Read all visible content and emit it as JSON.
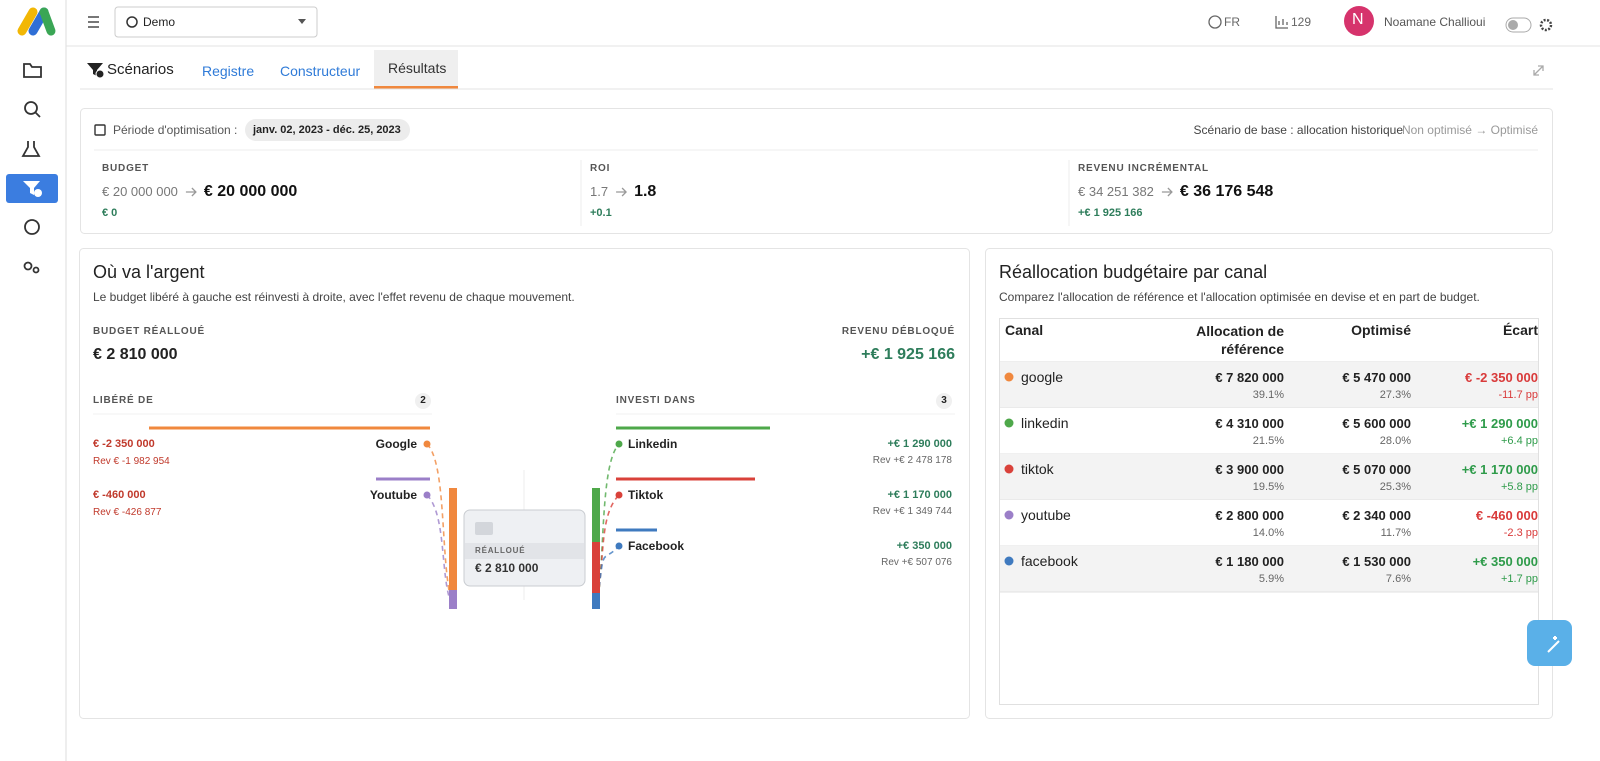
{
  "topbar": {
    "project": "Demo",
    "language": "FR",
    "count": "129",
    "avatar": "N",
    "user": "Noamane Challioui"
  },
  "tabs": [
    "Scénarios",
    "Registre",
    "Constructeur",
    "Résultats"
  ],
  "summary": {
    "period_label": "Période d'optimisation :",
    "period": "janv. 02, 2023 - déc. 25, 2023",
    "baseline": "Scénario de base : allocation historique",
    "mode": "Non optimisé → Optimisé",
    "kpis": [
      {
        "label": "BUDGET",
        "from": "€ 20 000 000",
        "to": "€ 20 000 000",
        "delta": "€ 0"
      },
      {
        "label": "ROI",
        "from": "1.7",
        "to": "1.8",
        "delta": "+0.1"
      },
      {
        "label": "REVENU INCRÉMENTAL",
        "from": "€ 34 251 382",
        "to": "€ 36 176 548",
        "delta": "+€ 1 925 166"
      }
    ]
  },
  "flow": {
    "title": "Où va l'argent",
    "subtitle": "Le budget libéré à gauche est réinvesti à droite, avec l'effet revenu de chaque mouvement.",
    "budget_label": "BUDGET RÉALLOUÉ",
    "budget": "€ 2 810 000",
    "revenue_label": "REVENU DÉBLOQUÉ",
    "revenue": "+€ 1 925 166",
    "freed_label": "LIBÉRÉ DE",
    "freed_count": "2",
    "invested_label": "INVESTI DANS",
    "invested_count": "3",
    "center_label": "RÉALLOUÉ",
    "center_value": "€ 2 810 000",
    "sources": [
      {
        "name": "Google",
        "amount": "€ -2 350 000",
        "revenue": "Rev € -1 982 954",
        "color": "#f0883e"
      },
      {
        "name": "Youtube",
        "amount": "€ -460 000",
        "revenue": "Rev € -426 877",
        "color": "#9b7fc8"
      }
    ],
    "targets": [
      {
        "name": "Linkedin",
        "amount": "+€ 1 290 000",
        "revenue": "Rev +€ 2 478 178",
        "color": "#4ea84a"
      },
      {
        "name": "Tiktok",
        "amount": "+€ 1 170 000",
        "revenue": "Rev +€ 1 349 744",
        "color": "#d9413a"
      },
      {
        "name": "Facebook",
        "amount": "+€ 350 000",
        "revenue": "Rev +€ 507 076",
        "color": "#3f7abf"
      }
    ]
  },
  "table": {
    "title": "Réallocation budgétaire par canal",
    "subtitle": "Comparez l'allocation de référence et l'allocation optimisée en devise et en part de budget.",
    "headers": [
      "Canal",
      "Allocation de référence",
      "Optimisé",
      "Écart"
    ],
    "rows": [
      {
        "canal": "google",
        "color": "#f0883e",
        "reference": "€ 7 820 000",
        "reference_share": "39.1%",
        "optimized": "€ 5 470 000",
        "optimized_share": "27.3%",
        "difference": "€ -2 350 000",
        "difference_pp": "-11.7 pp",
        "trend": "down"
      },
      {
        "canal": "linkedin",
        "color": "#4ea84a",
        "reference": "€ 4 310 000",
        "reference_share": "21.5%",
        "optimized": "€ 5 600 000",
        "optimized_share": "28.0%",
        "difference": "+€ 1 290 000",
        "difference_pp": "+6.4 pp",
        "trend": "up"
      },
      {
        "canal": "tiktok",
        "color": "#d9413a",
        "reference": "€ 3 900 000",
        "reference_share": "19.5%",
        "optimized": "€ 5 070 000",
        "optimized_share": "25.3%",
        "difference": "+€ 1 170 000",
        "difference_pp": "+5.8 pp",
        "trend": "up"
      },
      {
        "canal": "youtube",
        "color": "#9b7fc8",
        "reference": "€ 2 800 000",
        "reference_share": "14.0%",
        "optimized": "€ 2 340 000",
        "optimized_share": "11.7%",
        "difference": "€ -460 000",
        "difference_pp": "-2.3 pp",
        "trend": "down"
      },
      {
        "canal": "facebook",
        "color": "#3f7abf",
        "reference": "€ 1 180 000",
        "reference_share": "5.9%",
        "optimized": "€ 1 530 000",
        "optimized_share": "7.6%",
        "difference": "+€ 350 000",
        "difference_pp": "+1.7 pp",
        "trend": "up"
      }
    ]
  }
}
